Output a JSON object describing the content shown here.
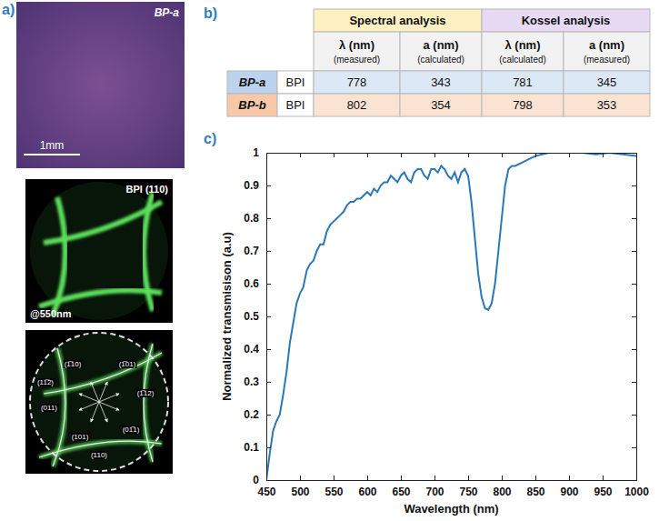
{
  "panel_labels": [
    "a)",
    "b)",
    "c)"
  ],
  "images": [
    {
      "label": "BP-a",
      "scale_bar": "1mm"
    },
    {
      "label": "BPI (110)",
      "wavelength": "@550nm"
    },
    {
      "miller_labels": [
        "(1̅10)",
        "(1̅01)",
        "(1̅12)",
        "(01̅1)",
        "(101)",
        "(011)",
        "(11̅2)",
        "(110)"
      ]
    }
  ],
  "table": {
    "group_headers": [
      "Spectral analysis",
      "Kossel analysis"
    ],
    "column_headers": [
      [
        "λ (nm)",
        "(measured)"
      ],
      [
        "a (nm)",
        "(calculated)"
      ],
      [
        "λ (nm)",
        "(calculated)"
      ],
      [
        "a (nm)",
        "(measured)"
      ]
    ],
    "rows": [
      {
        "sample": "BP-a",
        "phase": "BPI",
        "values": [
          778,
          343,
          781,
          345
        ]
      },
      {
        "sample": "BP-b",
        "phase": "BPI",
        "values": [
          802,
          354,
          798,
          353
        ]
      }
    ]
  },
  "chart_data": {
    "type": "line",
    "xlabel": "Wavelength (nm)",
    "ylabel": "Normalized transmisison (a.u)",
    "color": "#2b78b8",
    "grid": false,
    "xlim": [
      450,
      1000
    ],
    "ylim": [
      0,
      1
    ],
    "xticks": [
      450,
      500,
      550,
      600,
      650,
      700,
      750,
      800,
      850,
      900,
      950,
      1000
    ],
    "yticks": [
      0,
      0.1,
      0.2,
      0.3,
      0.4,
      0.5,
      0.6,
      0.7,
      0.8,
      0.9,
      1
    ],
    "x": [
      450,
      455,
      460,
      465,
      470,
      475,
      480,
      485,
      490,
      495,
      500,
      505,
      510,
      515,
      520,
      525,
      530,
      535,
      540,
      545,
      550,
      555,
      560,
      565,
      570,
      575,
      580,
      585,
      590,
      595,
      600,
      605,
      610,
      615,
      620,
      625,
      630,
      635,
      640,
      645,
      650,
      655,
      660,
      665,
      670,
      675,
      680,
      685,
      690,
      695,
      700,
      705,
      710,
      715,
      720,
      725,
      730,
      735,
      740,
      745,
      750,
      755,
      760,
      765,
      770,
      775,
      780,
      785,
      790,
      795,
      800,
      805,
      810,
      815,
      820,
      830,
      840,
      850,
      860,
      870,
      880,
      900,
      920,
      940,
      960,
      980,
      1000
    ],
    "values": [
      0.0,
      0.08,
      0.15,
      0.18,
      0.2,
      0.26,
      0.33,
      0.42,
      0.48,
      0.54,
      0.57,
      0.59,
      0.64,
      0.66,
      0.67,
      0.7,
      0.72,
      0.72,
      0.76,
      0.78,
      0.79,
      0.8,
      0.81,
      0.82,
      0.84,
      0.85,
      0.85,
      0.86,
      0.86,
      0.87,
      0.88,
      0.87,
      0.89,
      0.88,
      0.9,
      0.91,
      0.91,
      0.93,
      0.92,
      0.91,
      0.93,
      0.94,
      0.92,
      0.91,
      0.94,
      0.95,
      0.95,
      0.93,
      0.92,
      0.95,
      0.95,
      0.94,
      0.96,
      0.95,
      0.93,
      0.92,
      0.94,
      0.91,
      0.94,
      0.95,
      0.93,
      0.85,
      0.74,
      0.63,
      0.56,
      0.525,
      0.52,
      0.54,
      0.6,
      0.7,
      0.8,
      0.9,
      0.95,
      0.96,
      0.96,
      0.97,
      0.98,
      0.99,
      0.995,
      1.0,
      1.0,
      1.0,
      1.0,
      0.995,
      1.0,
      0.995,
      0.99
    ]
  }
}
